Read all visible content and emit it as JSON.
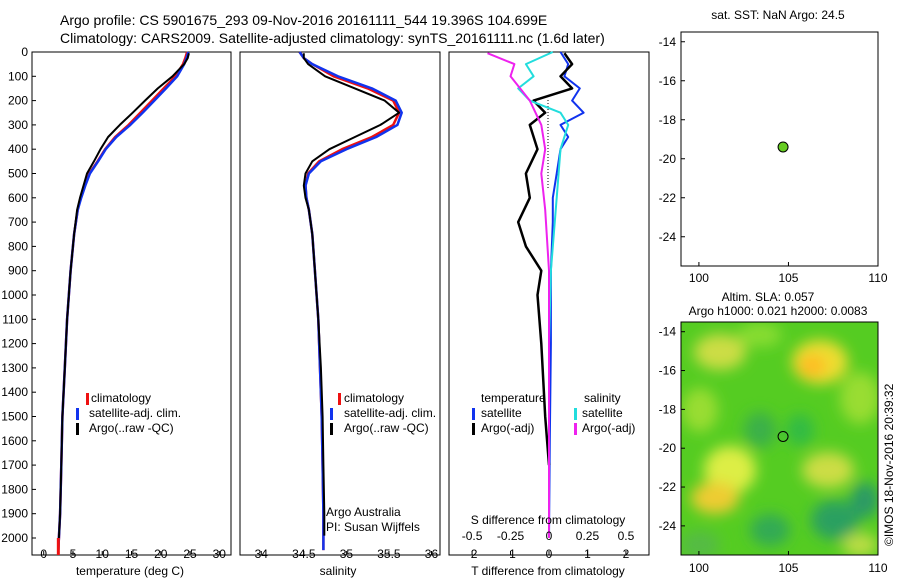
{
  "header": {
    "line1": "Argo profile: CS 5901675_293 09-Nov-2016 20161111_544 19.396S 104.699E",
    "line2": "Climatology: CARS2009. Satellite-adjusted climatology: synTS_20161111.nc (1.6d later)"
  },
  "depth_ticks": [
    "0",
    "100",
    "200",
    "300",
    "400",
    "500",
    "600",
    "700",
    "800",
    "900",
    "1000",
    "1100",
    "1200",
    "1300",
    "1400",
    "1500",
    "1600",
    "1700",
    "1800",
    "1900",
    "2000"
  ],
  "colors": {
    "climatology": "#ee1111",
    "satellite": "#1133ee",
    "argo": "#000000",
    "sal_satellite": "#22dddd",
    "sal_argo": "#ee22ee",
    "map_dot": "#66cc22"
  },
  "temp_panel": {
    "xlabel": "temperature (deg C)",
    "xticks": [
      "0",
      "5",
      "10",
      "15",
      "20",
      "25",
      "30"
    ],
    "legend": [
      "climatology",
      "satellite-adj. clim.",
      "Argo(..raw -QC)"
    ]
  },
  "sal_panel": {
    "xlabel": "salinity",
    "xticks": [
      "34",
      "34.5",
      "35",
      "35.5",
      "36"
    ],
    "legend": [
      "climatology",
      "satellite-adj. clim.",
      "Argo(..raw -QC)"
    ],
    "credit1": "Argo Australia",
    "credit2": "PI: Susan Wijffels"
  },
  "diff_panel": {
    "xlabel": "T difference from climatology",
    "top_label": "S difference from climatology",
    "xticks": [
      "-2",
      "-1",
      "0",
      "1",
      "2"
    ],
    "sticks": [
      "-0.5",
      "-0.25",
      "0",
      "0.25",
      "0.5"
    ],
    "legend_t_head": "temperature",
    "legend_s_head": "salinity",
    "legend_t": [
      "satellite",
      "Argo(-adj)"
    ],
    "legend_s": [
      "satellite",
      "Argo(-adj)"
    ]
  },
  "sst_panel": {
    "title": "sat. SST: NaN Argo: 24.5",
    "yticks": [
      "-14",
      "-16",
      "-18",
      "-20",
      "-22",
      "-24"
    ],
    "xticks": [
      "100",
      "105",
      "110"
    ]
  },
  "sla_panel": {
    "title1": "Altim. SLA: 0.057",
    "title2": "Argo h1000: 0.021 h2000: 0.0083",
    "yticks": [
      "-14",
      "-16",
      "-18",
      "-20",
      "-22",
      "-24"
    ],
    "xticks": [
      "100",
      "105",
      "110"
    ]
  },
  "footer_stamp": "©IMOS 18-Nov-2016 20:39:32",
  "chart_data": [
    {
      "type": "line",
      "xlabel": "temperature (deg C)",
      "ylabel": "",
      "xlim": [
        -2,
        32
      ],
      "ylim": [
        2070,
        0
      ],
      "series": [
        {
          "name": "climatology",
          "x": [
            24.5,
            24.2,
            23.8,
            22.5,
            20.5,
            18.5,
            16.5,
            14.5,
            12.2,
            10.5,
            9.2,
            7.8,
            7.0,
            6.3,
            5.8,
            5.2,
            4.6,
            4.0,
            3.6,
            3.2,
            3.0,
            2.8,
            2.6,
            2.5
          ],
          "y": [
            0,
            25,
            50,
            100,
            150,
            200,
            250,
            300,
            350,
            400,
            450,
            500,
            550,
            600,
            650,
            750,
            900,
            1100,
            1300,
            1500,
            1700,
            1900,
            2000,
            2050
          ]
        },
        {
          "name": "satellite-adj. clim.",
          "x": [
            24.7,
            24.4,
            24.0,
            22.8,
            20.9,
            18.9,
            16.9,
            14.8,
            12.4,
            10.6,
            9.3,
            7.9,
            7.1,
            6.4,
            5.8,
            5.2,
            4.6,
            4.0,
            3.6,
            3.2,
            3.0,
            2.8,
            2.6,
            2.5
          ],
          "y": [
            0,
            25,
            50,
            100,
            150,
            200,
            250,
            300,
            350,
            400,
            450,
            500,
            550,
            600,
            650,
            750,
            900,
            1100,
            1300,
            1500,
            1700,
            1900,
            2000,
            2050
          ]
        },
        {
          "name": "Argo(..raw -QC)",
          "x": [
            24.8,
            24.6,
            24.0,
            22.0,
            19.5,
            17.3,
            15.2,
            13.0,
            11.0,
            9.7,
            8.6,
            7.4,
            6.8,
            6.2,
            5.7,
            5.2,
            4.6,
            4.0,
            3.6,
            3.2,
            3.0,
            2.8,
            2.6
          ],
          "y": [
            5,
            25,
            50,
            100,
            150,
            200,
            250,
            300,
            350,
            400,
            450,
            500,
            550,
            600,
            650,
            750,
            900,
            1100,
            1300,
            1500,
            1700,
            1900,
            2000
          ]
        }
      ]
    },
    {
      "type": "line",
      "xlabel": "salinity",
      "ylabel": "",
      "xlim": [
        33.75,
        36.1
      ],
      "ylim": [
        2070,
        0
      ],
      "series": [
        {
          "name": "climatology",
          "x": [
            34.45,
            34.5,
            34.6,
            34.85,
            35.25,
            35.55,
            35.62,
            35.55,
            35.3,
            34.95,
            34.68,
            34.55,
            34.52,
            34.53,
            34.56,
            34.6,
            34.63,
            34.67,
            34.69,
            34.71,
            34.72,
            34.73,
            34.73
          ],
          "y": [
            0,
            25,
            50,
            100,
            150,
            200,
            250,
            300,
            350,
            400,
            450,
            500,
            550,
            600,
            650,
            750,
            900,
            1100,
            1300,
            1500,
            1700,
            1900,
            2050
          ]
        },
        {
          "name": "satellite-adj. clim.",
          "x": [
            34.45,
            34.5,
            34.6,
            34.9,
            35.3,
            35.58,
            35.65,
            35.6,
            35.35,
            35.0,
            34.7,
            34.56,
            34.52,
            34.53,
            34.56,
            34.6,
            34.63,
            34.67,
            34.69,
            34.71,
            34.72,
            34.73,
            34.73
          ],
          "y": [
            0,
            25,
            50,
            100,
            150,
            200,
            250,
            300,
            350,
            400,
            450,
            500,
            550,
            600,
            650,
            750,
            900,
            1100,
            1300,
            1500,
            1700,
            1900,
            2050
          ]
        },
        {
          "name": "Argo(..raw -QC)",
          "x": [
            34.5,
            34.5,
            34.55,
            34.75,
            35.1,
            35.45,
            35.62,
            35.4,
            35.1,
            34.8,
            34.6,
            34.52,
            34.5,
            34.52,
            34.56,
            34.6,
            34.63,
            34.67,
            34.7,
            34.72,
            34.73,
            34.74,
            34.74
          ],
          "y": [
            5,
            25,
            50,
            100,
            150,
            200,
            250,
            300,
            350,
            400,
            450,
            500,
            550,
            600,
            650,
            750,
            900,
            1100,
            1300,
            1500,
            1700,
            1900,
            1990
          ]
        }
      ]
    },
    {
      "type": "line",
      "xlabel": "T difference from climatology",
      "ylabel": "",
      "xlim": [
        -2.6,
        2.6
      ],
      "ylim": [
        2070,
        0
      ],
      "series": [
        {
          "name": "temperature satellite",
          "x": [
            0.3,
            0.5,
            0.4,
            0.8,
            0.6,
            0.9,
            0.3,
            0.5,
            0.3,
            0.2,
            0.1,
            0.1,
            0.05,
            0.05,
            0.02,
            0.0
          ],
          "y": [
            0,
            50,
            100,
            150,
            200,
            250,
            300,
            350,
            400,
            500,
            600,
            700,
            900,
            1200,
            1600,
            2000
          ]
        },
        {
          "name": "temperature Argo(-adj)",
          "x": [
            0.4,
            0.6,
            0.3,
            0.6,
            -0.4,
            -0.1,
            -0.5,
            -0.3,
            -0.6,
            -0.5,
            -0.8,
            -0.6,
            -0.2,
            -0.3,
            -0.2,
            -0.1,
            0.0
          ],
          "y": [
            5,
            50,
            100,
            150,
            200,
            250,
            300,
            400,
            500,
            600,
            700,
            800,
            900,
            1000,
            1200,
            1500,
            1700
          ]
        },
        {
          "name": "salinity satellite",
          "x": [
            0.1,
            -0.6,
            -0.4,
            -0.8,
            -0.5,
            0.3,
            0.5,
            0.3,
            0.2,
            0.05,
            0.0,
            0.0
          ],
          "y": [
            0,
            50,
            100,
            150,
            200,
            250,
            300,
            400,
            600,
            900,
            1200,
            2000
          ]
        },
        {
          "name": "salinity Argo(-adj)",
          "x": [
            -1.6,
            -0.9,
            -1.0,
            -0.5,
            -0.2,
            -0.1,
            -0.2,
            -0.1,
            0.0,
            0.0
          ],
          "y": [
            5,
            50,
            100,
            200,
            300,
            400,
            500,
            650,
            900,
            2000
          ]
        }
      ]
    },
    {
      "type": "scatter",
      "title": "sat. SST: NaN Argo: 24.5",
      "xlim": [
        99,
        110
      ],
      "ylim": [
        -25.5,
        -13.5
      ],
      "points": [
        {
          "x": 104.699,
          "y": -19.396
        }
      ]
    },
    {
      "type": "heatmap",
      "title": "Altim. SLA: 0.057",
      "xlim": [
        99,
        110
      ],
      "ylim": [
        -25.5,
        -13.5
      ],
      "points": [
        {
          "x": 104.699,
          "y": -19.396
        }
      ]
    }
  ]
}
